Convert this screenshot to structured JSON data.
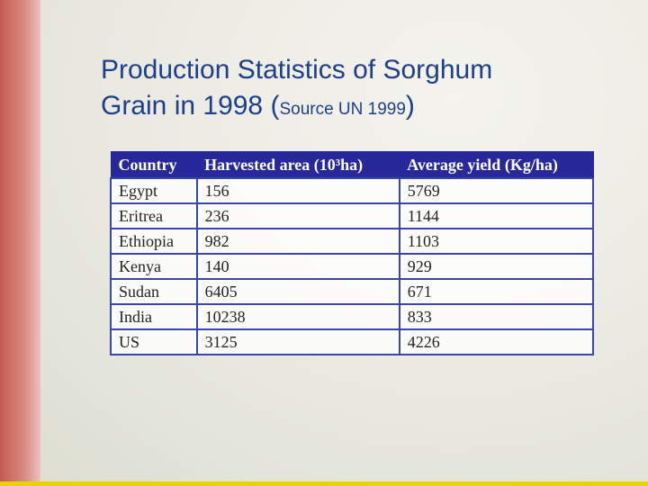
{
  "title": {
    "line1": "Production Statistics of Sorghum",
    "line2": "Grain in 1998 (",
    "source": "Source UN 1999",
    "close": ")"
  },
  "table": {
    "header": [
      "Country",
      "Harvested area (10³ha)",
      "Average yield (Kg/ha)"
    ],
    "rows": [
      [
        "Egypt",
        156,
        5769
      ],
      [
        "Eritrea",
        236,
        1144
      ],
      [
        "Ethiopia",
        982,
        1103
      ],
      [
        "Kenya",
        140,
        929
      ],
      [
        "Sudan",
        6405,
        671
      ],
      [
        "India",
        10238,
        833
      ],
      [
        "US",
        3125,
        4226
      ]
    ]
  }
}
